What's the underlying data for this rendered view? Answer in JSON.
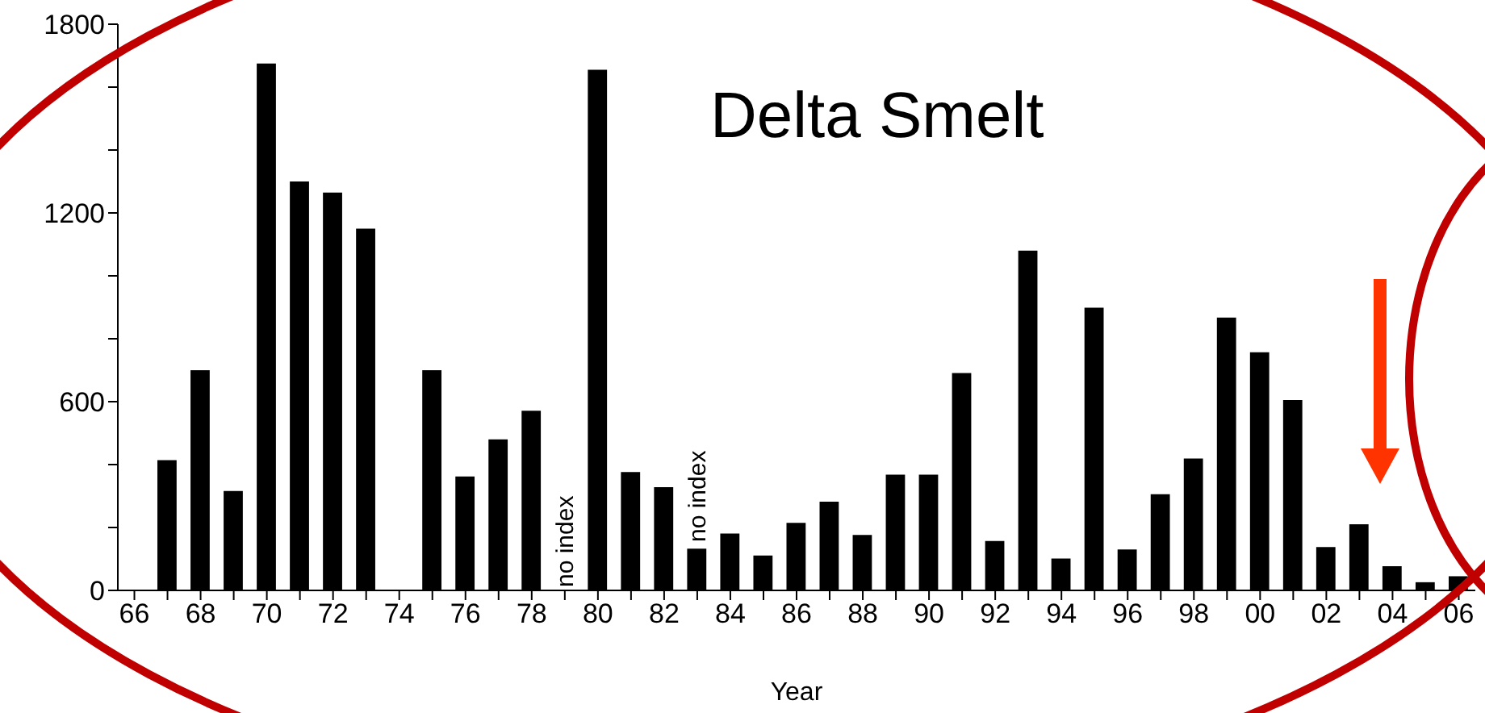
{
  "chart_data": {
    "type": "bar",
    "title": "Delta Smelt",
    "xlabel": "Year",
    "color": "#000000",
    "categories": [
      "66",
      null,
      "68",
      null,
      "70",
      null,
      "72",
      null,
      "74",
      null,
      "76",
      null,
      "78",
      null,
      "80",
      null,
      "82",
      null,
      "84",
      null,
      "86",
      null,
      "88",
      null,
      "90",
      null,
      "92",
      null,
      "94",
      null,
      "96",
      null,
      "98",
      null,
      "00",
      null,
      "02",
      null,
      "04",
      null,
      "06"
    ],
    "values": [
      null,
      414,
      700,
      316,
      1675,
      1300,
      1265,
      1150,
      null,
      700,
      362,
      480,
      571,
      null,
      1655,
      376,
      328,
      133,
      181,
      111,
      215,
      282,
      176,
      368,
      368,
      691,
      157,
      1080,
      101,
      899,
      130,
      306,
      419,
      867,
      757,
      605,
      138,
      210,
      77,
      26,
      45
    ],
    "ylim": [
      0,
      1800
    ],
    "yticks": [
      0,
      {
        "value": 200,
        "label": null
      },
      {
        "value": 400,
        "label": null
      },
      600,
      {
        "value": 800,
        "label": null
      },
      {
        "value": 1000,
        "label": null
      },
      1200,
      {
        "value": 1400,
        "label": null
      },
      {
        "value": 1600,
        "label": null
      },
      1800
    ],
    "annotations": [
      "no index",
      "no index"
    ],
    "grid": false,
    "legend": false
  }
}
